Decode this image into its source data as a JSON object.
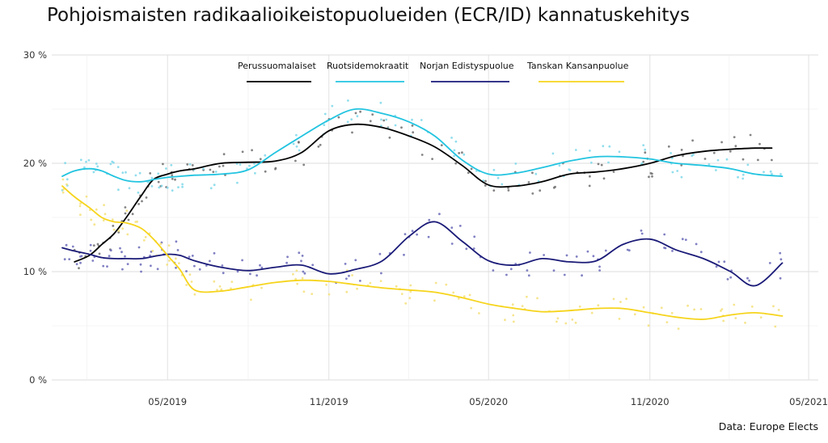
{
  "title": "Pohjoismaisten radikaalioikeistopuolueiden (ECR/ID) kannatuskehitys",
  "caption": "Data: Europe Elects",
  "chart_data": {
    "type": "line",
    "title": "Pohjoismaisten radikaalioikeistopuolueiden (ECR/ID) kannatuskehitys",
    "xlabel": "",
    "ylabel": "",
    "ylim": [
      0,
      30
    ],
    "yticks": [
      0,
      10,
      20,
      30
    ],
    "ytick_labels": [
      "0 %",
      "10 %",
      "20 %",
      "30 %"
    ],
    "xlim": [
      "2018-12-20",
      "2021-05-12"
    ],
    "xticks": [
      "2019-05-01",
      "2019-11-01",
      "2020-05-01",
      "2020-11-01",
      "2021-05-01"
    ],
    "xtick_labels": [
      "05/2019",
      "11/2019",
      "05/2020",
      "11/2020",
      "05/2021"
    ],
    "legend_position": "top-center",
    "grid": true,
    "series": [
      {
        "name": "Perussuomalaiset",
        "color": "#000000",
        "point_color": "#6e6e6e",
        "x": [
          "2019-01-15",
          "2019-02-01",
          "2019-02-15",
          "2019-03-01",
          "2019-03-15",
          "2019-04-01",
          "2019-04-15",
          "2019-05-01",
          "2019-05-15",
          "2019-06-01",
          "2019-07-01",
          "2019-08-01",
          "2019-09-01",
          "2019-10-01",
          "2019-11-01",
          "2019-12-01",
          "2020-01-01",
          "2020-02-01",
          "2020-03-01",
          "2020-04-01",
          "2020-05-01",
          "2020-06-01",
          "2020-07-01",
          "2020-08-01",
          "2020-09-01",
          "2020-10-01",
          "2020-11-01",
          "2020-12-01",
          "2021-01-01",
          "2021-02-01",
          "2021-03-01",
          "2021-03-20"
        ],
        "values": [
          10.9,
          11.5,
          12.5,
          13.5,
          15.0,
          17.0,
          18.5,
          19.0,
          19.3,
          19.5,
          20.0,
          20.1,
          20.2,
          21.0,
          23.0,
          23.6,
          23.3,
          22.5,
          21.5,
          19.8,
          18.0,
          17.9,
          18.3,
          19.0,
          19.2,
          19.5,
          20.0,
          20.7,
          21.1,
          21.3,
          21.4,
          21.4
        ]
      },
      {
        "name": "Ruotsidemokraatit",
        "color": "#22c4e0",
        "point_color": "#7fd8ea",
        "x": [
          "2019-01-01",
          "2019-01-15",
          "2019-02-01",
          "2019-02-15",
          "2019-03-01",
          "2019-03-15",
          "2019-04-01",
          "2019-04-15",
          "2019-05-01",
          "2019-05-15",
          "2019-06-01",
          "2019-07-01",
          "2019-08-01",
          "2019-09-01",
          "2019-10-01",
          "2019-11-01",
          "2019-12-01",
          "2020-01-01",
          "2020-02-01",
          "2020-03-01",
          "2020-04-01",
          "2020-05-01",
          "2020-06-01",
          "2020-07-01",
          "2020-08-01",
          "2020-09-01",
          "2020-10-01",
          "2020-11-01",
          "2020-12-01",
          "2021-01-01",
          "2021-02-01",
          "2021-03-01",
          "2021-04-01"
        ],
        "values": [
          18.8,
          19.3,
          19.5,
          19.3,
          18.8,
          18.4,
          18.3,
          18.5,
          18.7,
          18.8,
          18.9,
          19.0,
          19.4,
          21.0,
          22.5,
          24.0,
          25.0,
          24.6,
          23.8,
          22.5,
          20.3,
          19.0,
          19.1,
          19.6,
          20.2,
          20.6,
          20.6,
          20.4,
          20.0,
          19.8,
          19.5,
          19.0,
          18.8
        ]
      },
      {
        "name": "Norjan Edistyspuolue",
        "color": "#1a1a78",
        "point_color": "#6a6ab8",
        "x": [
          "2019-01-01",
          "2019-01-15",
          "2019-02-01",
          "2019-02-15",
          "2019-03-01",
          "2019-03-15",
          "2019-04-01",
          "2019-04-15",
          "2019-05-01",
          "2019-05-15",
          "2019-06-01",
          "2019-07-01",
          "2019-08-01",
          "2019-09-01",
          "2019-10-01",
          "2019-11-01",
          "2019-12-01",
          "2020-01-01",
          "2020-02-01",
          "2020-03-01",
          "2020-04-01",
          "2020-05-01",
          "2020-06-01",
          "2020-07-01",
          "2020-08-01",
          "2020-09-01",
          "2020-10-01",
          "2020-11-01",
          "2020-12-01",
          "2021-01-01",
          "2021-02-01",
          "2021-03-01",
          "2021-04-01"
        ],
        "values": [
          12.2,
          11.9,
          11.6,
          11.3,
          11.2,
          11.2,
          11.2,
          11.4,
          11.6,
          11.5,
          11.0,
          10.4,
          10.1,
          10.4,
          10.6,
          9.8,
          10.2,
          11.0,
          13.3,
          14.6,
          12.8,
          11.0,
          10.6,
          11.2,
          10.9,
          11.0,
          12.5,
          13.0,
          12.0,
          11.2,
          10.0,
          8.7,
          10.8
        ]
      },
      {
        "name": "Tanskan Kansanpuolue",
        "color": "#f6d41c",
        "point_color": "#f4e07a",
        "x": [
          "2019-01-01",
          "2019-01-15",
          "2019-02-01",
          "2019-02-15",
          "2019-03-01",
          "2019-03-15",
          "2019-04-01",
          "2019-04-15",
          "2019-05-01",
          "2019-05-15",
          "2019-06-01",
          "2019-07-01",
          "2019-08-01",
          "2019-09-01",
          "2019-10-01",
          "2019-11-01",
          "2019-12-01",
          "2020-01-01",
          "2020-02-01",
          "2020-03-01",
          "2020-04-01",
          "2020-05-01",
          "2020-06-01",
          "2020-07-01",
          "2020-08-01",
          "2020-09-01",
          "2020-10-01",
          "2020-11-01",
          "2020-12-01",
          "2021-01-01",
          "2021-02-01",
          "2021-03-01",
          "2021-04-01"
        ],
        "values": [
          17.9,
          16.9,
          15.9,
          15.0,
          14.6,
          14.5,
          14.0,
          13.0,
          11.5,
          10.2,
          8.3,
          8.2,
          8.6,
          9.0,
          9.2,
          9.1,
          8.8,
          8.5,
          8.3,
          8.1,
          7.6,
          7.0,
          6.6,
          6.3,
          6.4,
          6.6,
          6.6,
          6.2,
          5.8,
          5.6,
          6.0,
          6.2,
          5.9
        ]
      }
    ]
  }
}
